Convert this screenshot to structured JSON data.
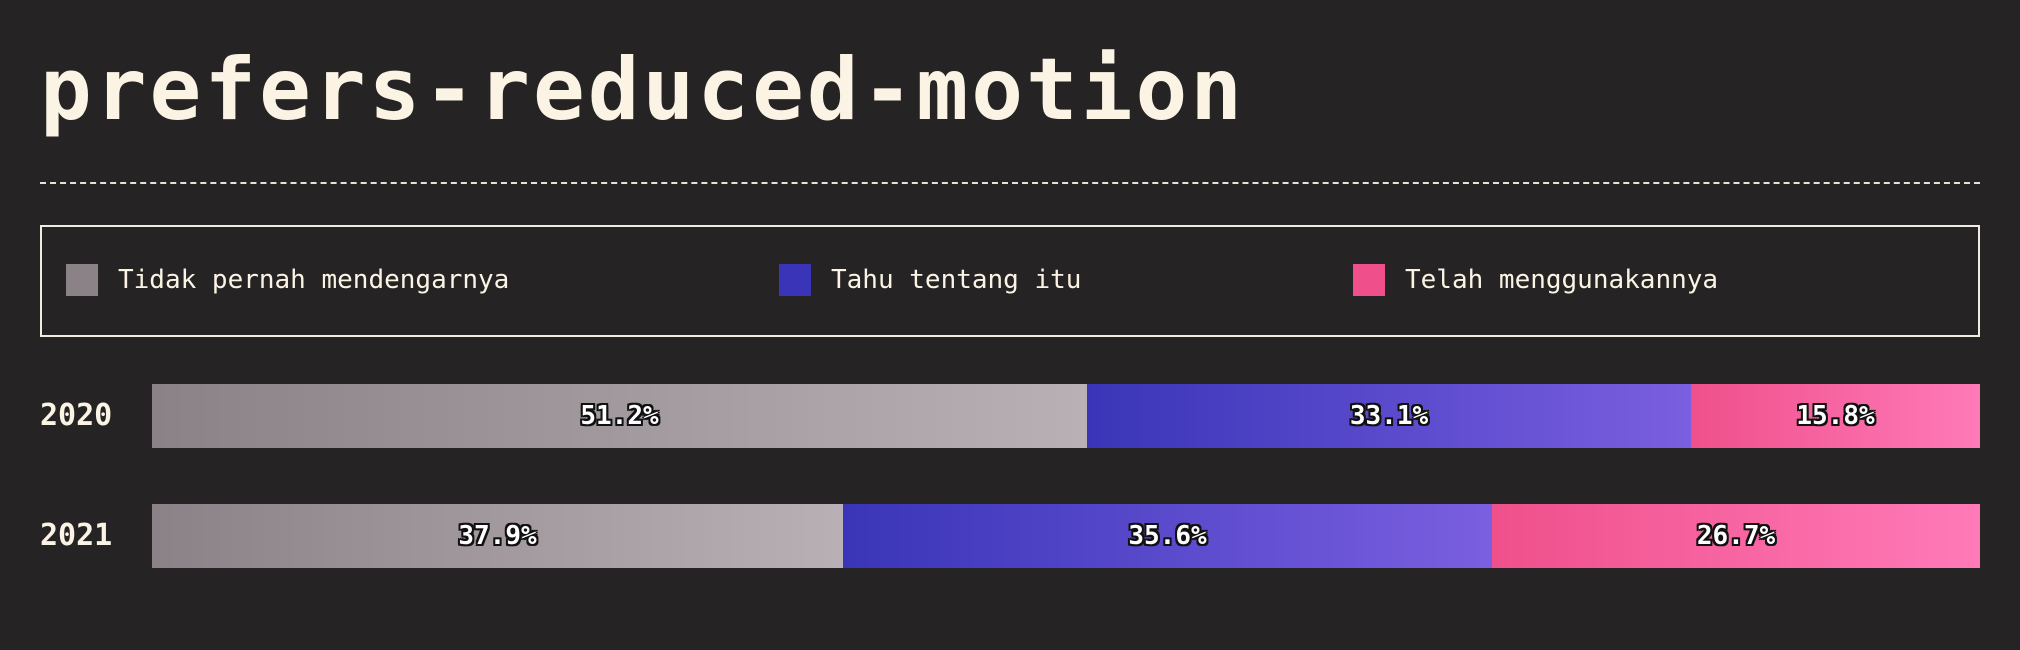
{
  "title": "prefers-reduced-motion",
  "legend": [
    {
      "label": "Tidak pernah mendengarnya",
      "color": "#8a8287"
    },
    {
      "label": "Tahu tentang itu",
      "color": "#3a35b8"
    },
    {
      "label": "Telah menggunakannya",
      "color": "#ef508b"
    }
  ],
  "chart_data": {
    "type": "bar",
    "stacked": true,
    "orientation": "horizontal",
    "categories": [
      "2020",
      "2021"
    ],
    "series": [
      {
        "name": "Tidak pernah mendengarnya",
        "values": [
          51.2,
          37.9
        ],
        "labels": [
          "51.2%",
          "37.9%"
        ],
        "gradient": [
          "#8a8287",
          "#b8b0b4"
        ]
      },
      {
        "name": "Tahu tentang itu",
        "values": [
          33.1,
          35.6
        ],
        "labels": [
          "33.1%",
          "35.6%"
        ],
        "gradient": [
          "#3a35b8",
          "#7a5fe0"
        ]
      },
      {
        "name": "Telah menggunakannya",
        "values": [
          15.8,
          26.7
        ],
        "labels": [
          "15.8%",
          "26.7%"
        ],
        "gradient": [
          "#ef508b",
          "#ff7ab8"
        ]
      }
    ],
    "xlim": [
      0,
      100
    ],
    "grid": false,
    "legend_position": "top"
  }
}
